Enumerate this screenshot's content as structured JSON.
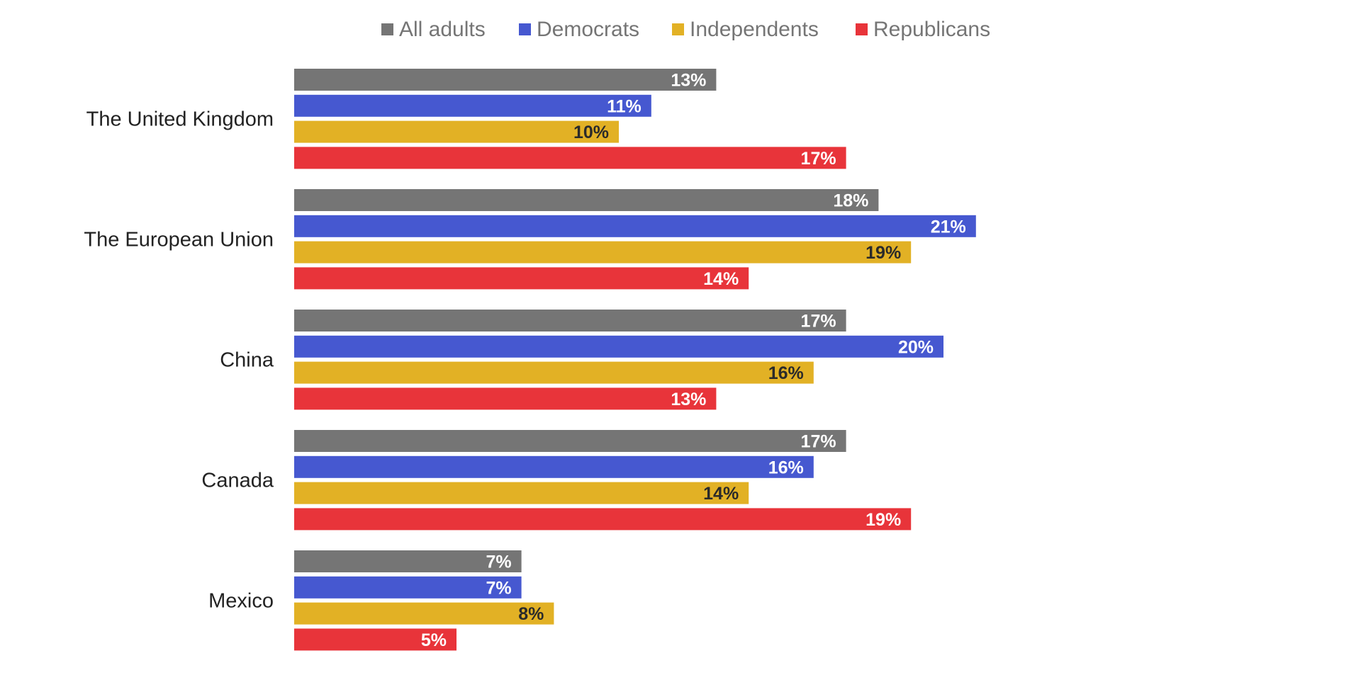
{
  "chart_data": {
    "type": "bar",
    "orientation": "horizontal",
    "categories": [
      "The United Kingdom",
      "The European Union",
      "China",
      "Canada",
      "Mexico"
    ],
    "series": [
      {
        "name": "All adults",
        "color": "#757575",
        "label_color": "#ffffff",
        "values": [
          13,
          18,
          17,
          17,
          7
        ]
      },
      {
        "name": "Democrats",
        "color": "#4658d0",
        "label_color": "#ffffff",
        "values": [
          11,
          21,
          20,
          16,
          7
        ]
      },
      {
        "name": "Independents",
        "color": "#e2b125",
        "label_color": "#2a2a2a",
        "values": [
          10,
          19,
          16,
          14,
          8
        ]
      },
      {
        "name": "Republicans",
        "color": "#e8343a",
        "label_color": "#ffffff",
        "values": [
          17,
          14,
          13,
          19,
          5
        ]
      }
    ],
    "value_suffix": "%",
    "legend_position": "top",
    "grid": false,
    "xlim": [
      0,
      25
    ]
  }
}
